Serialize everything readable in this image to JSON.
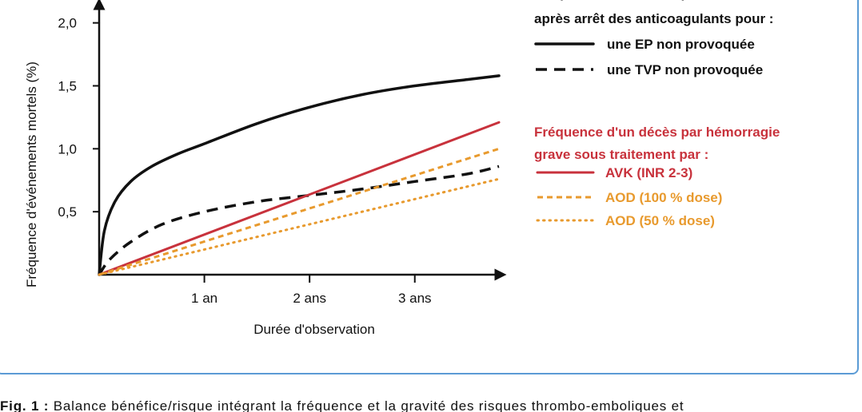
{
  "chart_data": {
    "type": "line",
    "xlabel": "Durée d'observation",
    "ylabel": "Fréquence d'événements mortels (%)",
    "xlim": [
      0,
      3.8
    ],
    "ylim": [
      0,
      2.15
    ],
    "x_ticks": [
      {
        "value": 1,
        "label": "1 an"
      },
      {
        "value": 2,
        "label": "2 ans"
      },
      {
        "value": 3,
        "label": "3 ans"
      }
    ],
    "y_ticks": [
      {
        "value": 0.5,
        "label": "0,5"
      },
      {
        "value": 1.0,
        "label": "1,0"
      },
      {
        "value": 1.5,
        "label": "1,5"
      },
      {
        "value": 2.0,
        "label": "2,0"
      }
    ],
    "legend_groups": [
      {
        "title_lines": [
          "Fréquence d'un décès par récidive",
          "après arrêt des anticoagulants pour :"
        ],
        "color": "#111111"
      },
      {
        "title_lines": [
          "Fréquence d'un décès par hémorragie",
          "grave sous traitement par :"
        ],
        "color": "#c8323c"
      }
    ],
    "series": [
      {
        "name": "une EP non provoquée",
        "group": 0,
        "color": "#111111",
        "style": "solid",
        "x": [
          0,
          0.05,
          0.15,
          0.3,
          0.5,
          0.75,
          1,
          1.5,
          2,
          2.5,
          3,
          3.5,
          3.8
        ],
        "y": [
          0,
          0.35,
          0.58,
          0.74,
          0.86,
          0.96,
          1.04,
          1.2,
          1.33,
          1.43,
          1.5,
          1.55,
          1.58
        ]
      },
      {
        "name": "une TVP non provoquée",
        "group": 0,
        "color": "#111111",
        "style": "dashed",
        "x": [
          0,
          0.1,
          0.3,
          0.6,
          1,
          1.5,
          2,
          2.5,
          3,
          3.5,
          3.8
        ],
        "y": [
          0,
          0.12,
          0.26,
          0.4,
          0.5,
          0.58,
          0.63,
          0.68,
          0.74,
          0.8,
          0.86
        ]
      },
      {
        "name": "AVK (INR 2-3)",
        "group": 1,
        "color": "#c8323c",
        "style": "solid",
        "x": [
          0,
          3.8
        ],
        "y": [
          0,
          1.21
        ]
      },
      {
        "name": "AOD (100 % dose)",
        "group": 1,
        "color": "#e89a2e",
        "style": "dashed",
        "x": [
          0,
          3.8
        ],
        "y": [
          0,
          1.0
        ]
      },
      {
        "name": "AOD (50 % dose)",
        "group": 1,
        "color": "#e89a2e",
        "style": "dotted",
        "x": [
          0,
          3.8
        ],
        "y": [
          0,
          0.76
        ]
      }
    ]
  },
  "caption": {
    "lead": "Fig. 1 :",
    "text": "Balance bénéfice/risque intégrant la fréquence et la gravité des risques thrombo-emboliques et"
  }
}
